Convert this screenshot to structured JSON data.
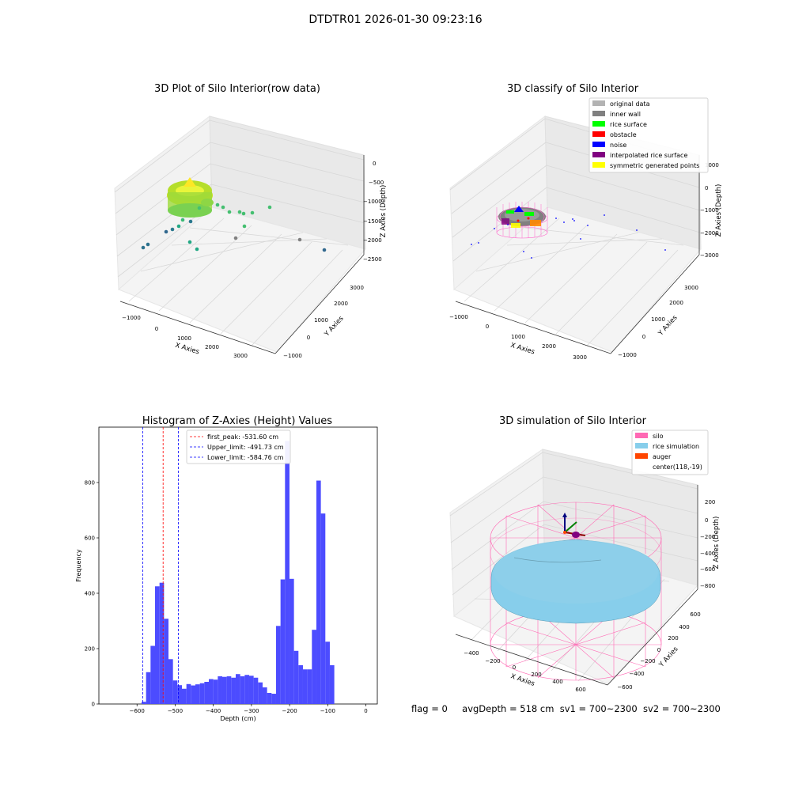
{
  "suptitle": "DTDTR01 2026-01-30 09:23:16",
  "footer": {
    "flag": "flag = 0",
    "avg_depth": "avgDepth = 518 cm",
    "sv1": "sv1 = 700~2300",
    "sv2": "sv2 = 700~2300"
  },
  "colors": {
    "original_data": "#b3b3b3",
    "inner_wall": "#808080",
    "rice_surface": "#00ff00",
    "obstacle": "#ff0000",
    "noise": "#0000ff",
    "interpolated": "#800080",
    "symmetric": "#ffff00",
    "silo": "#ff69b4",
    "rice_sim": "#87ceeb",
    "auger": "#ff4500",
    "hist_bar": "#4c4cff"
  },
  "panel_raw": {
    "title": "3D Plot of Silo Interior(row data)",
    "x_label": "X Axies",
    "y_label": "Y Axies",
    "z_label": "Z Axies (Depth)",
    "x_ticks": [
      "−1000",
      "0",
      "1000",
      "2000",
      "3000"
    ],
    "y_ticks": [
      "−1000",
      "0",
      "1000",
      "2000",
      "3000"
    ],
    "z_ticks": [
      "0",
      "−500",
      "−1000",
      "−1500",
      "−2000",
      "−2500"
    ]
  },
  "panel_classify": {
    "title": "3D classify of Silo Interior",
    "x_label": "X Axies",
    "y_label": "Y Axies",
    "z_label": "Z Axies (Depth)",
    "x_ticks": [
      "−1000",
      "0",
      "1000",
      "2000",
      "3000"
    ],
    "y_ticks": [
      "−1000",
      "0",
      "1000",
      "2000",
      "3000"
    ],
    "z_ticks": [
      "1000",
      "0",
      "−1000",
      "−2000",
      "−3000"
    ],
    "legend": [
      {
        "label": "original data",
        "color": "#b3b3b3"
      },
      {
        "label": "inner wall",
        "color": "#808080"
      },
      {
        "label": "rice surface",
        "color": "#00ff00"
      },
      {
        "label": "obstacle",
        "color": "#ff0000"
      },
      {
        "label": "noise",
        "color": "#0000ff"
      },
      {
        "label": "interpolated rice surface",
        "color": "#800080"
      },
      {
        "label": "symmetric generated points",
        "color": "#ffff00"
      }
    ]
  },
  "panel_sim": {
    "title": "3D simulation of Silo Interior",
    "x_label": "X Axies",
    "y_label": "Y Axies",
    "z_label": "Z Axies (Depth)",
    "x_ticks": [
      "−400",
      "−200",
      "0",
      "200",
      "400",
      "600"
    ],
    "y_ticks": [
      "600",
      "400",
      "200",
      "0",
      "−200",
      "−400",
      "−600"
    ],
    "z_ticks": [
      "200",
      "0",
      "−200",
      "−400",
      "−600",
      "−800"
    ],
    "legend": [
      {
        "label": "silo",
        "color": "#ff69b4"
      },
      {
        "label": "rice simulation",
        "color": "#87ceeb"
      },
      {
        "label": "auger",
        "color": "#ff4500"
      },
      {
        "label": "center(118,-19)",
        "color": ""
      }
    ]
  },
  "chart_data": {
    "type": "bar",
    "title": "Histogram of Z-Axies (Height) Values",
    "xlabel": "Depth (cm)",
    "ylabel": "Frequency",
    "xlim": [
      -700,
      30
    ],
    "ylim": [
      0,
      1000
    ],
    "x_ticks": [
      -600,
      -500,
      -400,
      -300,
      -200,
      -100,
      0
    ],
    "x_tick_labels": [
      "−600",
      "−500",
      "−400",
      "−300",
      "−200",
      "−100",
      "0"
    ],
    "y_ticks": [
      0,
      200,
      400,
      600,
      800
    ],
    "y_tick_labels": [
      "0",
      "200",
      "400",
      "600",
      "800"
    ],
    "bin_start": -588,
    "bin_width": 11.75,
    "counts": [
      8,
      115,
      210,
      425,
      438,
      308,
      162,
      85,
      68,
      55,
      72,
      67,
      71,
      75,
      80,
      90,
      88,
      100,
      98,
      100,
      95,
      108,
      100,
      105,
      102,
      95,
      78,
      60,
      40,
      37,
      282,
      450,
      950,
      452,
      192,
      140,
      125,
      125,
      268,
      807,
      688,
      225,
      140
    ],
    "lines": [
      {
        "label": "first_peak: -531.60 cm",
        "x": -531.6,
        "color": "#ff0000"
      },
      {
        "label": "Upper_limit: -491.73 cm",
        "x": -491.73,
        "color": "#0000ff"
      },
      {
        "label": "Lower_limit: -584.76 cm",
        "x": -584.76,
        "color": "#0000ff"
      }
    ]
  }
}
